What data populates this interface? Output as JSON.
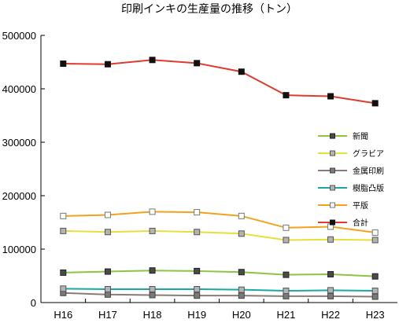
{
  "chart_data": {
    "type": "line",
    "title": "印刷インキの生産量の推移（トン）",
    "xlabel": "",
    "ylabel": "",
    "categories": [
      "H16",
      "H17",
      "H18",
      "H19",
      "H20",
      "H21",
      "H22",
      "H23"
    ],
    "ylim": [
      0,
      500000
    ],
    "yticks": [
      0,
      100000,
      200000,
      300000,
      400000,
      500000
    ],
    "grid": false,
    "legend_position": "right",
    "series": [
      {
        "name": "新聞",
        "color": "#8cc63f",
        "marker": "square-filled-dark",
        "values": [
          56000,
          58000,
          60000,
          59000,
          57000,
          52000,
          53000,
          49000
        ]
      },
      {
        "name": "グラビア",
        "color": "#e6e03a",
        "marker": "square-gray",
        "values": [
          134000,
          132000,
          134000,
          132000,
          129000,
          117000,
          118000,
          117000
        ]
      },
      {
        "name": "金属印刷",
        "color": "#8a7b78",
        "marker": "square-gray-dark",
        "values": [
          18000,
          15000,
          14000,
          13000,
          13000,
          12000,
          12000,
          11000
        ]
      },
      {
        "name": "樹脂凸版",
        "color": "#1aa9a2",
        "marker": "square-gray",
        "values": [
          26000,
          25000,
          25000,
          25000,
          24000,
          22000,
          23000,
          22000
        ]
      },
      {
        "name": "平版",
        "color": "#f5a11c",
        "marker": "square-open",
        "values": [
          162000,
          164000,
          170000,
          169000,
          162000,
          140000,
          142000,
          131000
        ]
      },
      {
        "name": "合計",
        "color": "#e03b2c",
        "marker": "square-filled-black",
        "values": [
          447000,
          446000,
          454000,
          448000,
          432000,
          388000,
          386000,
          373000
        ]
      }
    ]
  }
}
